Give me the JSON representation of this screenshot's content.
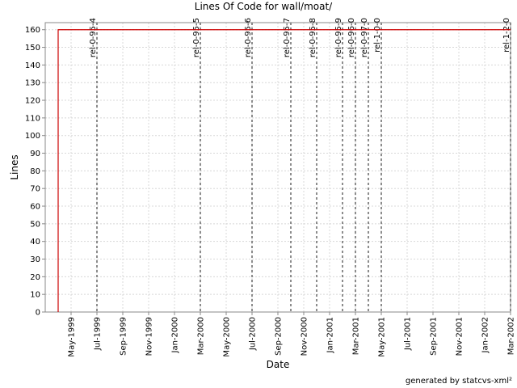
{
  "chart_data": {
    "type": "line",
    "title": "Lines Of Code for wall/moat/",
    "x_label": "Date",
    "y_label": "Lines",
    "footer": "generated by statcvs-xml²",
    "x": [
      "1999-04",
      "1999-04",
      "2002-03"
    ],
    "series": [
      {
        "name": "Lines",
        "color": "#cc0000",
        "values": [
          0,
          160,
          160
        ]
      }
    ],
    "markers": [
      {
        "label": "rel-0-95-4",
        "x": "1999-07"
      },
      {
        "label": "rel-0-95-5",
        "x": "2000-03"
      },
      {
        "label": "rel-0-95-6",
        "x": "2000-07"
      },
      {
        "label": "rel-0-95-7",
        "x": "2000-10"
      },
      {
        "label": "rel-0-95-8",
        "x": "2000-12"
      },
      {
        "label": "rel-0-95-9",
        "x": "2001-02"
      },
      {
        "label": "rel-0-96-0",
        "x": "2001-03"
      },
      {
        "label": "rel-0-97-0",
        "x": "2001-04"
      },
      {
        "label": "rel-1-0-0",
        "x": "2001-05"
      },
      {
        "label": "rel-1-2-0",
        "x": "2002-03"
      }
    ],
    "marker_color": "#666666",
    "xlim": [
      "1999-03",
      "2002-03"
    ],
    "xticks": [
      {
        "value": "1999-05",
        "label": "May-1999"
      },
      {
        "value": "1999-07",
        "label": "Jul-1999"
      },
      {
        "value": "1999-09",
        "label": "Sep-1999"
      },
      {
        "value": "1999-11",
        "label": "Nov-1999"
      },
      {
        "value": "2000-01",
        "label": "Jan-2000"
      },
      {
        "value": "2000-03",
        "label": "Mar-2000"
      },
      {
        "value": "2000-05",
        "label": "May-2000"
      },
      {
        "value": "2000-07",
        "label": "Jul-2000"
      },
      {
        "value": "2000-09",
        "label": "Sep-2000"
      },
      {
        "value": "2000-11",
        "label": "Nov-2000"
      },
      {
        "value": "2001-01",
        "label": "Jan-2001"
      },
      {
        "value": "2001-03",
        "label": "Mar-2001"
      },
      {
        "value": "2001-05",
        "label": "May-2001"
      },
      {
        "value": "2001-07",
        "label": "Jul-2001"
      },
      {
        "value": "2001-09",
        "label": "Sep-2001"
      },
      {
        "value": "2001-11",
        "label": "Nov-2001"
      },
      {
        "value": "2002-01",
        "label": "Jan-2002"
      },
      {
        "value": "2002-03",
        "label": "Mar-2002"
      }
    ],
    "ylim": [
      0,
      164
    ],
    "yticks": [
      0,
      10,
      20,
      30,
      40,
      50,
      60,
      70,
      80,
      90,
      100,
      110,
      120,
      130,
      140,
      150,
      160
    ],
    "grid": true
  }
}
